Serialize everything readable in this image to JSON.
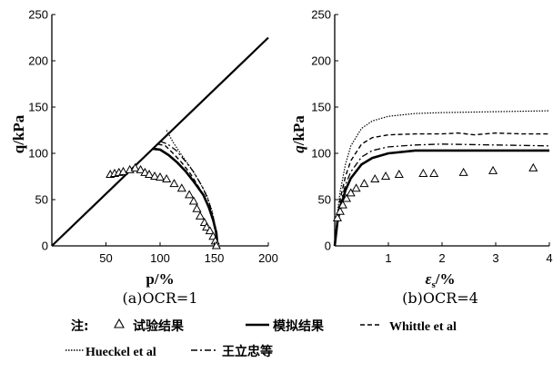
{
  "chart_data": [
    {
      "type": "line",
      "caption": "(a)OCR=1",
      "xlabel": "p/%",
      "ylabel": "q/kPa",
      "xlim": [
        0,
        200
      ],
      "ylim": [
        0,
        250
      ],
      "xticks": [
        "50",
        "100",
        "150",
        "200"
      ],
      "yticks": [
        "0",
        "50",
        "100",
        "150",
        "200",
        "250"
      ],
      "ref_line": {
        "x": [
          0,
          200
        ],
        "y": [
          0,
          225
        ]
      },
      "markers": {
        "name": "试验结果",
        "x": [
          54,
          58,
          62,
          66,
          72,
          77,
          82,
          86,
          90,
          95,
          100,
          106,
          113,
          120,
          127,
          131,
          134,
          137,
          141,
          143,
          146,
          149,
          151,
          152
        ],
        "y": [
          77,
          78,
          79,
          80,
          82,
          84,
          82,
          79,
          77,
          75,
          74,
          72,
          67,
          62,
          55,
          48,
          40,
          32,
          25,
          20,
          16,
          10,
          5,
          0
        ]
      },
      "series": [
        {
          "name": "模拟结果",
          "x": [
            93,
            100,
            108,
            116,
            124,
            132,
            140,
            145,
            149,
            152,
            153
          ],
          "y": [
            105,
            104,
            98,
            90,
            80,
            68,
            55,
            42,
            28,
            14,
            0
          ]
        },
        {
          "name": "Whittle et al",
          "x": [
            98,
            105,
            112,
            120,
            128,
            136,
            143,
            148,
            151,
            153
          ],
          "y": [
            110,
            108,
            100,
            90,
            78,
            63,
            47,
            32,
            16,
            0
          ]
        },
        {
          "name": "Hueckel et al",
          "x": [
            106,
            112,
            120,
            128,
            136,
            143,
            148,
            151,
            153
          ],
          "y": [
            125,
            112,
            98,
            85,
            70,
            55,
            38,
            20,
            0
          ]
        },
        {
          "name": "王立忠等",
          "x": [
            100,
            107,
            115,
            123,
            131,
            139,
            145,
            149,
            152,
            153
          ],
          "y": [
            113,
            110,
            103,
            92,
            80,
            64,
            48,
            32,
            15,
            0
          ]
        }
      ]
    },
    {
      "type": "line",
      "caption": "(b)OCR=4",
      "xlabel": "ε_s/%",
      "ylabel": "q/kPa",
      "xlim": [
        0,
        4
      ],
      "ylim": [
        0,
        250
      ],
      "xticks": [
        "1",
        "2",
        "3",
        "4"
      ],
      "yticks": [
        "0",
        "50",
        "100",
        "150",
        "200",
        "250"
      ],
      "markers": {
        "name": "试验结果",
        "x": [
          0.05,
          0.1,
          0.15,
          0.22,
          0.3,
          0.4,
          0.55,
          0.75,
          0.95,
          1.2,
          1.65,
          1.85,
          2.4,
          2.95,
          3.7
        ],
        "y": [
          30,
          37,
          44,
          51,
          57,
          62,
          67,
          72,
          75,
          77,
          78,
          78,
          79,
          81,
          84
        ]
      },
      "series": [
        {
          "name": "模拟结果",
          "x": [
            0,
            0.05,
            0.1,
            0.2,
            0.3,
            0.5,
            0.7,
            1.0,
            1.5,
            2.0,
            3.0,
            4.0
          ],
          "y": [
            0,
            25,
            40,
            60,
            73,
            88,
            95,
            100,
            103,
            103,
            103,
            103
          ]
        },
        {
          "name": "Whittle et al",
          "x": [
            0,
            0.05,
            0.1,
            0.2,
            0.3,
            0.5,
            0.7,
            1.0,
            1.5,
            2.0,
            2.3,
            2.6,
            3.0,
            3.5,
            4.0
          ],
          "y": [
            0,
            30,
            50,
            75,
            92,
            110,
            117,
            120,
            121,
            121,
            122,
            120,
            122,
            121,
            121
          ]
        },
        {
          "name": "Hueckel et al",
          "x": [
            0,
            0.05,
            0.1,
            0.2,
            0.3,
            0.5,
            0.7,
            1.0,
            1.5,
            2.0,
            3.0,
            4.0
          ],
          "y": [
            0,
            35,
            58,
            88,
            108,
            127,
            135,
            140,
            143,
            144,
            145,
            146
          ]
        },
        {
          "name": "王立忠等",
          "x": [
            0,
            0.05,
            0.1,
            0.2,
            0.3,
            0.5,
            0.7,
            1.0,
            1.5,
            2.0,
            3.0,
            4.0
          ],
          "y": [
            0,
            27,
            44,
            66,
            80,
            96,
            103,
            107,
            109,
            110,
            109,
            108
          ]
        }
      ]
    }
  ],
  "legend": {
    "note": "注:",
    "items": [
      {
        "label": "试验结果"
      },
      {
        "label": "模拟结果"
      },
      {
        "label": "Whittle et al"
      },
      {
        "label": "Hueckel et al"
      },
      {
        "label": "王立忠等"
      }
    ]
  }
}
